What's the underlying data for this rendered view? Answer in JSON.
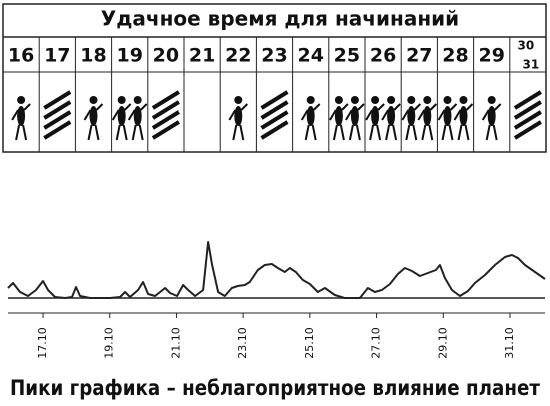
{
  "table": {
    "title": "Удачное время для начинаний",
    "days": [
      "16",
      "17",
      "18",
      "19",
      "20",
      "21",
      "22",
      "23",
      "24",
      "25",
      "26",
      "27",
      "28",
      "29",
      "30",
      "31"
    ]
  },
  "chart_data": {
    "type": "line",
    "caption": "Пики графика – неблагоприятное влияние планет",
    "x": [
      15.95,
      16.1,
      16.31,
      16.55,
      16.79,
      17.0,
      17.15,
      17.36,
      17.66,
      17.87,
      17.99,
      18.11,
      18.41,
      19.01,
      19.31,
      19.46,
      19.61,
      19.85,
      20.0,
      20.15,
      20.36,
      20.66,
      20.81,
      21.02,
      21.2,
      21.35,
      21.56,
      21.8,
      21.95,
      22.07,
      22.25,
      22.45,
      22.66,
      22.84,
      23.05,
      23.2,
      23.44,
      23.65,
      23.86,
      24.04,
      24.25,
      24.4,
      24.58,
      24.79,
      25.0,
      25.24,
      25.45,
      25.75,
      26.04,
      26.5,
      26.74,
      26.95,
      27.16,
      27.4,
      27.64,
      27.85,
      28.06,
      28.3,
      28.54,
      28.78,
      28.9,
      29.05,
      29.26,
      29.5,
      29.74,
      29.95,
      30.25,
      30.55,
      30.85,
      31.06,
      31.24,
      31.45,
      31.75,
      32.05
    ],
    "series": [
      {
        "color": "#222222",
        "values": [
          10,
          15,
          6,
          2,
          8,
          17,
          8,
          1,
          0,
          1,
          11,
          2,
          0,
          0,
          1,
          6,
          1,
          8,
          16,
          4,
          2,
          10,
          5,
          2,
          13,
          8,
          2,
          8,
          56,
          33,
          6,
          2,
          10,
          12,
          13,
          16,
          28,
          33,
          34,
          30,
          26,
          30,
          26,
          18,
          14,
          6,
          10,
          3,
          0,
          0,
          10,
          6,
          8,
          14,
          24,
          30,
          27,
          22,
          25,
          28,
          33,
          20,
          8,
          2,
          7,
          15,
          23,
          33,
          41,
          43,
          40,
          33,
          26,
          19
        ]
      }
    ],
    "xlim": [
      15.95,
      32.05
    ],
    "ylim": [
      0,
      70
    ],
    "xticks": [
      {
        "value": 17,
        "label": "17.10"
      },
      {
        "value": 19,
        "label": "19.10"
      },
      {
        "value": 21,
        "label": "21.10"
      },
      {
        "value": 23,
        "label": "23.10"
      },
      {
        "value": 25,
        "label": "25.10"
      },
      {
        "value": 27,
        "label": "27.10"
      },
      {
        "value": 29,
        "label": "29.10"
      },
      {
        "value": 31,
        "label": "31.10"
      }
    ]
  }
}
